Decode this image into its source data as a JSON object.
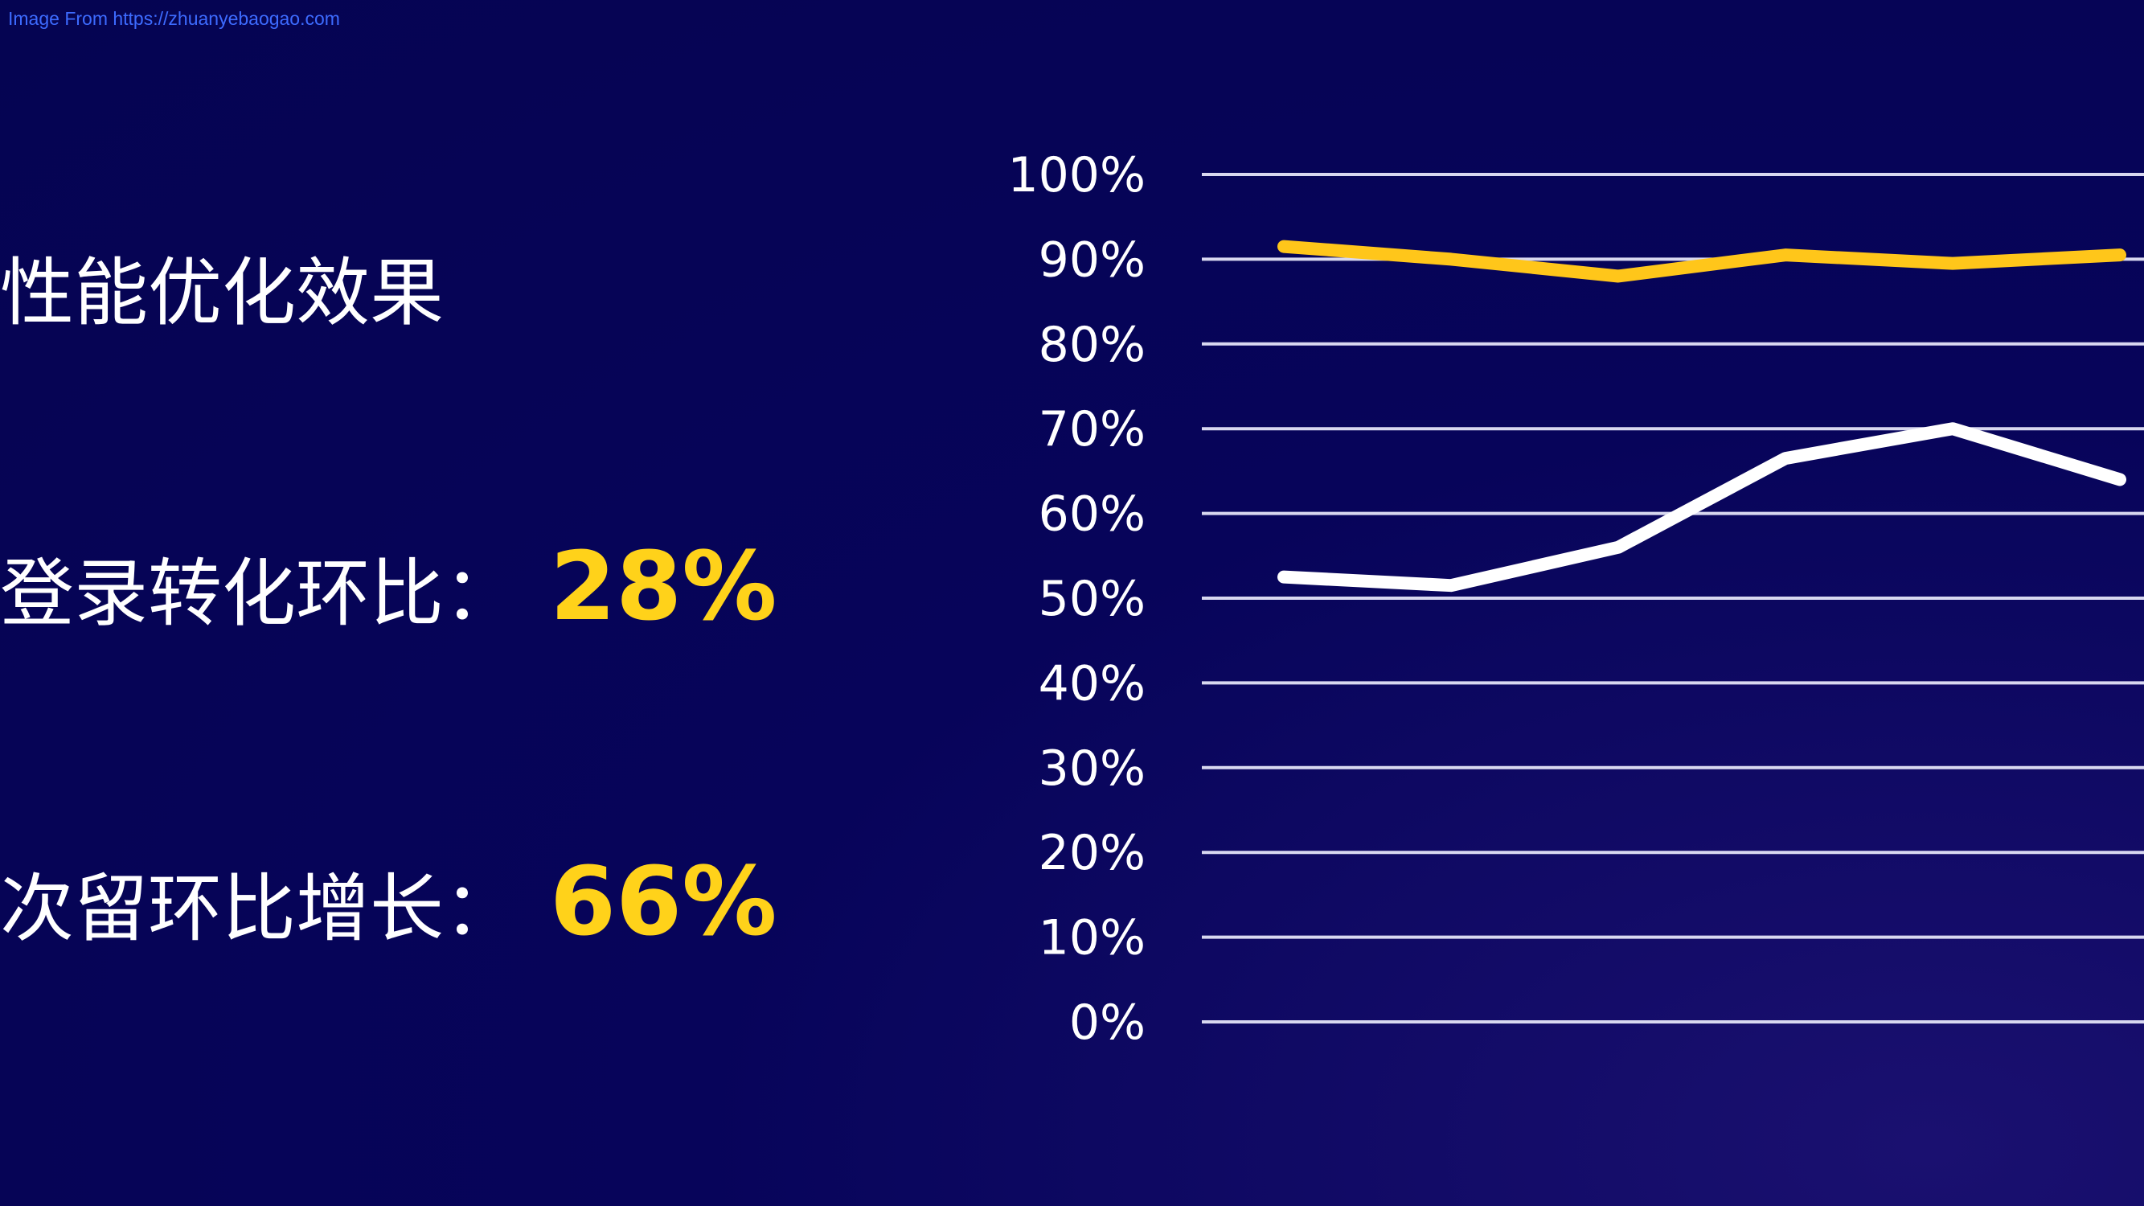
{
  "watermark": "Image From https://zhuanyebaogao.com",
  "slide": {
    "title": "性能优化效果",
    "metrics": [
      {
        "label": "登录转化环比：",
        "value": "28%"
      },
      {
        "label": "次留环比增长：",
        "value": "66%"
      }
    ]
  },
  "colors": {
    "background": "#050452",
    "series_gold": "#ffc61a",
    "series_white": "#ffffff",
    "accent_value": "#ffd21a",
    "gridline": "#d8d8f0"
  },
  "chart_data": {
    "type": "line",
    "title": "",
    "xlabel": "",
    "ylabel": "",
    "ylim": [
      0,
      100
    ],
    "yticks": [
      "0%",
      "10%",
      "20%",
      "30%",
      "40%",
      "50%",
      "60%",
      "70%",
      "80%",
      "90%",
      "100%"
    ],
    "grid": true,
    "x": [
      1,
      2,
      3,
      4,
      5,
      6
    ],
    "series": [
      {
        "color": "#ffc61a",
        "values": [
          91.5,
          90,
          88,
          90.5,
          89.5,
          90.5
        ]
      },
      {
        "color": "#ffffff",
        "values": [
          52.5,
          51.5,
          56,
          66.5,
          70,
          64
        ]
      }
    ]
  }
}
